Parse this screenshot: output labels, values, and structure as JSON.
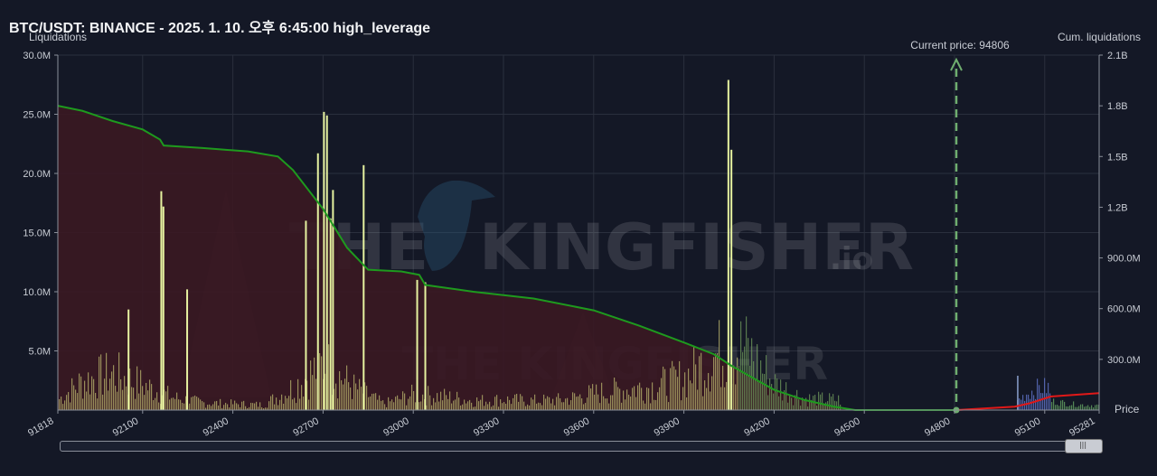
{
  "page": {
    "title": "BTC/USDT: BINANCE - 2025. 1. 10. 오후 6:45:00 high_leverage"
  },
  "chart_data": {
    "type": "bar",
    "title": "BTC/USDT: BINANCE - 2025. 1. 10. 오후 6:45:00 high_leverage",
    "ylabel": "Liquidations",
    "y2label": "Cum. liquidations",
    "xlabel": "Price",
    "xlim": [
      91818,
      95281
    ],
    "ylim": [
      0,
      30000000
    ],
    "y2lim": [
      0,
      2100000000
    ],
    "x_ticks": [
      {
        "value": 91818,
        "label": "91818"
      },
      {
        "value": 92100,
        "label": "92100"
      },
      {
        "value": 92400,
        "label": "92400"
      },
      {
        "value": 92700,
        "label": "92700"
      },
      {
        "value": 93000,
        "label": "93000"
      },
      {
        "value": 93300,
        "label": "93300"
      },
      {
        "value": 93600,
        "label": "93600"
      },
      {
        "value": 93900,
        "label": "93900"
      },
      {
        "value": 94200,
        "label": "94200"
      },
      {
        "value": 94500,
        "label": "94500"
      },
      {
        "value": 94800,
        "label": "94800"
      },
      {
        "value": 95100,
        "label": "95100"
      },
      {
        "value": 95281,
        "label": "95281"
      }
    ],
    "y_ticks": [
      {
        "value": 5000000,
        "label": "5.0M"
      },
      {
        "value": 10000000,
        "label": "10.0M"
      },
      {
        "value": 15000000,
        "label": "15.0M"
      },
      {
        "value": 20000000,
        "label": "20.0M"
      },
      {
        "value": 25000000,
        "label": "25.0M"
      },
      {
        "value": 30000000,
        "label": "30.0M"
      }
    ],
    "y2_ticks": [
      {
        "value": 300000000,
        "label": "300.0M"
      },
      {
        "value": 600000000,
        "label": "600.0M"
      },
      {
        "value": 900000000,
        "label": "900.0M"
      },
      {
        "value": 1200000000,
        "label": "1.2B"
      },
      {
        "value": 1500000000,
        "label": "1.5B"
      },
      {
        "value": 1800000000,
        "label": "1.8B"
      },
      {
        "value": 2100000000,
        "label": "2.1B"
      }
    ],
    "current_price": {
      "value": 94806,
      "label": "Current price: 94806"
    },
    "watermark": "THE KINGFISHER",
    "watermark_suffix": ".io",
    "colors": {
      "long_bars": "#b9b46e",
      "long_spikes": "#e6f2a0",
      "long_green_bars": "#6f9a5c",
      "short_bars": "#5a6fc0",
      "short_light_bars": "#8aa0cc",
      "short_green_bars": "#5f9a5f",
      "cum_long_line": "#1e9a1e",
      "cum_short_line": "#e01818",
      "cum_long_fill": "#3a1822",
      "current_price_line": "#6fae6f",
      "grid": "#2a2f3d"
    },
    "long_spikes": [
      {
        "x": 92050,
        "value": 8500000
      },
      {
        "x": 92159,
        "value": 18500000
      },
      {
        "x": 92166,
        "value": 17200000
      },
      {
        "x": 92245,
        "value": 10200000
      },
      {
        "x": 92640,
        "value": 16000000
      },
      {
        "x": 92680,
        "value": 21700000
      },
      {
        "x": 92700,
        "value": 25200000
      },
      {
        "x": 92710,
        "value": 24900000
      },
      {
        "x": 92722,
        "value": 16200000
      },
      {
        "x": 92730,
        "value": 18600000
      },
      {
        "x": 92832,
        "value": 20700000
      },
      {
        "x": 93010,
        "value": 11000000
      },
      {
        "x": 93037,
        "value": 10800000
      },
      {
        "x": 94045,
        "value": 27900000
      },
      {
        "x": 94055,
        "value": 22000000
      }
    ],
    "long_profile": [
      {
        "x": 91818,
        "value": 1000000
      },
      {
        "x": 91900,
        "value": 2800000
      },
      {
        "x": 92000,
        "value": 3500000
      },
      {
        "x": 92100,
        "value": 2400000
      },
      {
        "x": 92200,
        "value": 1200000
      },
      {
        "x": 92300,
        "value": 700000
      },
      {
        "x": 92400,
        "value": 600000
      },
      {
        "x": 92500,
        "value": 500000
      },
      {
        "x": 92600,
        "value": 2200000
      },
      {
        "x": 92700,
        "value": 4500000
      },
      {
        "x": 92800,
        "value": 2200000
      },
      {
        "x": 92900,
        "value": 600000
      },
      {
        "x": 93000,
        "value": 1500000
      },
      {
        "x": 93100,
        "value": 1300000
      },
      {
        "x": 93200,
        "value": 900000
      },
      {
        "x": 93300,
        "value": 1000000
      },
      {
        "x": 93400,
        "value": 900000
      },
      {
        "x": 93500,
        "value": 1000000
      },
      {
        "x": 93600,
        "value": 1600000
      },
      {
        "x": 93700,
        "value": 2000000
      },
      {
        "x": 93800,
        "value": 2300000
      },
      {
        "x": 93900,
        "value": 3100000
      },
      {
        "x": 94000,
        "value": 5200000
      },
      {
        "x": 94100,
        "value": 6000000
      },
      {
        "x": 94200,
        "value": 2500000
      },
      {
        "x": 94300,
        "value": 1100000
      },
      {
        "x": 94420,
        "value": 1000000
      },
      {
        "x": 94421,
        "value": 0
      },
      {
        "x": 95281,
        "value": 0
      }
    ],
    "short_profile": [
      {
        "x": 94806,
        "value": 0
      },
      {
        "x": 95005,
        "value": 0
      },
      {
        "x": 95006,
        "value": 800000
      },
      {
        "x": 95040,
        "value": 1500000
      },
      {
        "x": 95080,
        "value": 2000000
      },
      {
        "x": 95110,
        "value": 2000000
      },
      {
        "x": 95120,
        "value": 800000
      },
      {
        "x": 95200,
        "value": 500000
      },
      {
        "x": 95281,
        "value": 400000
      }
    ],
    "cum_long": [
      {
        "x": 91818,
        "value": 1800000000
      },
      {
        "x": 91900,
        "value": 1770000000
      },
      {
        "x": 92000,
        "value": 1710000000
      },
      {
        "x": 92100,
        "value": 1660000000
      },
      {
        "x": 92158,
        "value": 1600000000
      },
      {
        "x": 92170,
        "value": 1565000000
      },
      {
        "x": 92300,
        "value": 1550000000
      },
      {
        "x": 92450,
        "value": 1530000000
      },
      {
        "x": 92550,
        "value": 1500000000
      },
      {
        "x": 92600,
        "value": 1420000000
      },
      {
        "x": 92700,
        "value": 1190000000
      },
      {
        "x": 92780,
        "value": 960000000
      },
      {
        "x": 92850,
        "value": 830000000
      },
      {
        "x": 92960,
        "value": 820000000
      },
      {
        "x": 93020,
        "value": 800000000
      },
      {
        "x": 93040,
        "value": 740000000
      },
      {
        "x": 93200,
        "value": 700000000
      },
      {
        "x": 93400,
        "value": 660000000
      },
      {
        "x": 93600,
        "value": 590000000
      },
      {
        "x": 93750,
        "value": 500000000
      },
      {
        "x": 93900,
        "value": 400000000
      },
      {
        "x": 94000,
        "value": 330000000
      },
      {
        "x": 94060,
        "value": 260000000
      },
      {
        "x": 94120,
        "value": 200000000
      },
      {
        "x": 94200,
        "value": 120000000
      },
      {
        "x": 94300,
        "value": 60000000
      },
      {
        "x": 94400,
        "value": 20000000
      },
      {
        "x": 94470,
        "value": 0
      },
      {
        "x": 94806,
        "value": 0
      }
    ],
    "cum_short": [
      {
        "x": 94806,
        "value": 0
      },
      {
        "x": 95000,
        "value": 20000000
      },
      {
        "x": 95050,
        "value": 40000000
      },
      {
        "x": 95120,
        "value": 80000000
      },
      {
        "x": 95281,
        "value": 100000000
      }
    ]
  }
}
